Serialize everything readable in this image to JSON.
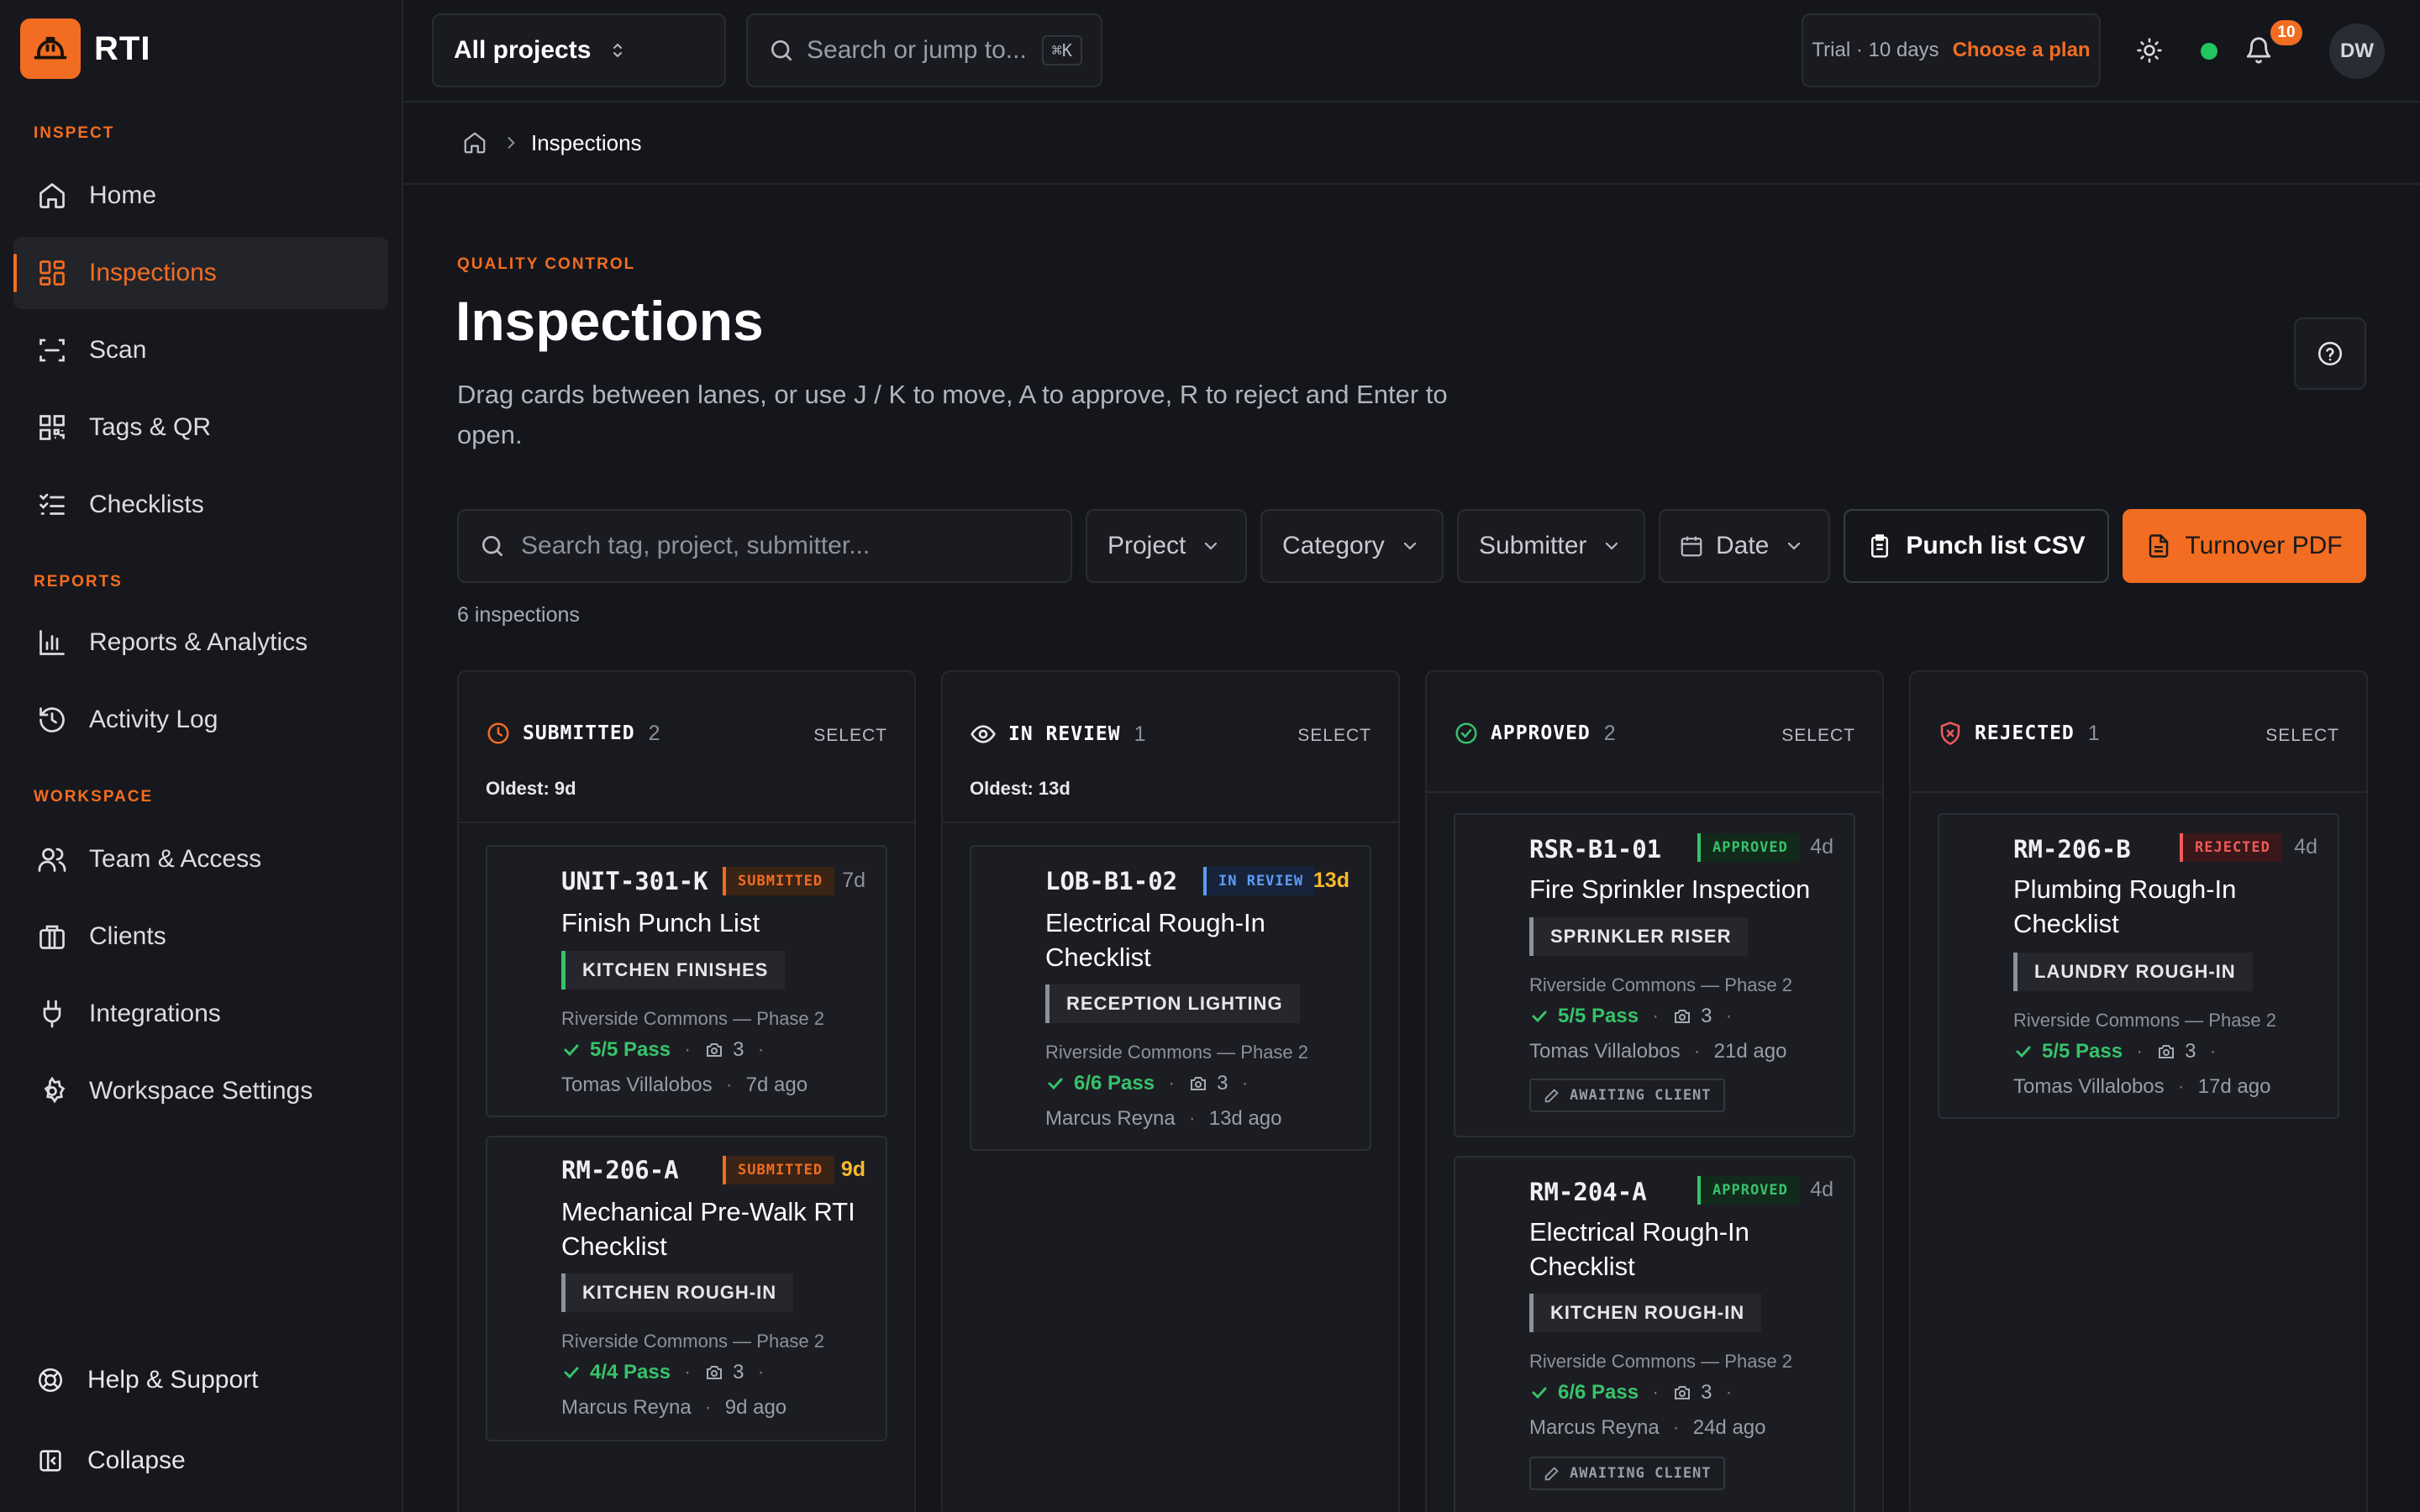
{
  "app": {
    "name": "RTI"
  },
  "sidebar": {
    "sections": [
      {
        "label": "INSPECT"
      },
      {
        "label": "REPORTS"
      },
      {
        "label": "WORKSPACE"
      }
    ],
    "items": [
      {
        "label": "Home",
        "icon": "home-icon"
      },
      {
        "label": "Inspections",
        "icon": "grid-icon",
        "active": true
      },
      {
        "label": "Scan",
        "icon": "scan-icon"
      },
      {
        "label": "Tags & QR",
        "icon": "qr-icon"
      },
      {
        "label": "Checklists",
        "icon": "checklist-icon"
      },
      {
        "label": "Reports & Analytics",
        "icon": "bar-chart-icon"
      },
      {
        "label": "Activity Log",
        "icon": "history-icon"
      },
      {
        "label": "Team & Access",
        "icon": "users-icon"
      },
      {
        "label": "Clients",
        "icon": "briefcase-icon"
      },
      {
        "label": "Integrations",
        "icon": "plug-icon"
      },
      {
        "label": "Workspace Settings",
        "icon": "gear-icon"
      }
    ],
    "help": "Help & Support",
    "collapse": "Collapse"
  },
  "topbar": {
    "project_select": "All projects",
    "search_placeholder": "Search or jump to...",
    "search_shortcut": "⌘K",
    "trial_text": "Trial · 10 days",
    "trial_cta": "Choose a plan",
    "notification_count": "10",
    "avatar_initials": "DW",
    "status_color": "#22c55e"
  },
  "breadcrumb": {
    "current": "Inspections"
  },
  "page": {
    "eyebrow": "QUALITY CONTROL",
    "title": "Inspections",
    "description": "Drag cards between lanes, or use J / K to move, A to approve, R to reject and Enter to open."
  },
  "filters": {
    "search_placeholder": "Search tag, project, submitter...",
    "project": "Project",
    "category": "Category",
    "submitter": "Submitter",
    "date": "Date",
    "csv_button": "Punch list CSV",
    "pdf_button": "Turnover PDF",
    "count": "6 inspections"
  },
  "colors": {
    "accent": "#f26d21",
    "approved": "#37c26b",
    "review": "#5b9cf5",
    "rejected": "#ef5b5b",
    "warn": "#f5b92e"
  },
  "lanes": [
    {
      "title": "SUBMITTED",
      "count": "2",
      "select": "SELECT",
      "oldest": "Oldest: 9d",
      "cards": [
        {
          "tag": "UNIT-301-K",
          "status": "SUBMITTED",
          "age": "7d",
          "title": "Finish Punch List",
          "location": "KITCHEN FINISHES",
          "project": "Riverside Commons — Phase 2",
          "pass": "5/5 Pass",
          "photos": "3",
          "submitter": "Tomas Villalobos",
          "when": "7d ago"
        },
        {
          "tag": "RM-206-A",
          "status": "SUBMITTED",
          "age": "9d",
          "title": "Mechanical Pre-Walk RTI Checklist",
          "location": "KITCHEN ROUGH-IN",
          "project": "Riverside Commons — Phase 2",
          "pass": "4/4 Pass",
          "photos": "3",
          "submitter": "Marcus Reyna",
          "when": "9d ago"
        }
      ]
    },
    {
      "title": "IN REVIEW",
      "count": "1",
      "select": "SELECT",
      "oldest": "Oldest: 13d",
      "cards": [
        {
          "tag": "LOB-B1-02",
          "status": "IN REVIEW",
          "age": "13d",
          "title": "Electrical Rough-In Checklist",
          "location": "RECEPTION LIGHTING",
          "project": "Riverside Commons — Phase 2",
          "pass": "6/6 Pass",
          "photos": "3",
          "submitter": "Marcus Reyna",
          "when": "13d ago"
        }
      ]
    },
    {
      "title": "APPROVED",
      "count": "2",
      "select": "SELECT",
      "cards": [
        {
          "tag": "RSR-B1-01",
          "status": "APPROVED",
          "age": "4d",
          "title": "Fire Sprinkler Inspection",
          "location": "SPRINKLER RISER",
          "project": "Riverside Commons — Phase 2",
          "pass": "5/5 Pass",
          "photos": "3",
          "submitter": "Tomas Villalobos",
          "when": "21d ago",
          "awaiting": "AWAITING CLIENT"
        },
        {
          "tag": "RM-204-A",
          "status": "APPROVED",
          "age": "4d",
          "title": "Electrical Rough-In Checklist",
          "location": "KITCHEN ROUGH-IN",
          "project": "Riverside Commons — Phase 2",
          "pass": "6/6 Pass",
          "photos": "3",
          "submitter": "Marcus Reyna",
          "when": "24d ago",
          "awaiting": "AWAITING CLIENT"
        }
      ]
    },
    {
      "title": "REJECTED",
      "count": "1",
      "select": "SELECT",
      "cards": [
        {
          "tag": "RM-206-B",
          "status": "REJECTED",
          "age": "4d",
          "title": "Plumbing Rough-In Checklist",
          "location": "LAUNDRY ROUGH-IN",
          "project": "Riverside Commons — Phase 2",
          "pass": "5/5 Pass",
          "photos": "3",
          "submitter": "Tomas Villalobos",
          "when": "17d ago"
        }
      ]
    }
  ]
}
